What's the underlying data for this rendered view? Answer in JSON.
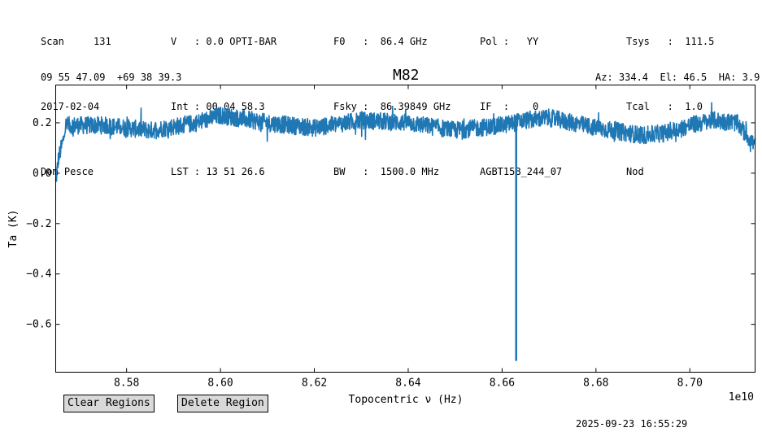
{
  "header": {
    "col1": [
      "Scan     131",
      "2017-02-04",
      "Dom Pesce"
    ],
    "col2": [
      "V   : 0.0 OPTI-BAR",
      "Int : 00 04 58.3",
      "LST : 13 51 26.6"
    ],
    "col3": [
      "F0   :  86.4 GHz",
      "Fsky :  86.39849 GHz",
      "BW   :  1500.0 MHz"
    ],
    "col4": [
      "Pol :   YY",
      "IF  :    0",
      "AGBT15B_244_07"
    ],
    "col5": [
      "Tsys   :  111.5",
      "Tcal   :  1.0",
      "Nod"
    ],
    "radec": "09 55 47.09  +69 38 39.3",
    "azel": "Az: 334.4  El: 46.5  HA: 3.9"
  },
  "buttons": {
    "clear": "Clear Regions",
    "delete": "Delete Region"
  },
  "timestamp": "2025-09-23 16:55:29",
  "colors": {
    "line": "#1f77b4",
    "button_bg": "#d9d9d9"
  },
  "chart_data": {
    "type": "line",
    "title": "M82",
    "xlabel": "Topocentric ν (Hz)",
    "ylabel": "Ta (K)",
    "x_offset_label": "1e10",
    "xlim": [
      8.5649,
      8.7139
    ],
    "ylim": [
      -0.79,
      0.35
    ],
    "xticks": [
      8.58,
      8.6,
      8.62,
      8.64,
      8.66,
      8.68,
      8.7
    ],
    "xtick_labels": [
      "8.58",
      "8.60",
      "8.62",
      "8.64",
      "8.66",
      "8.68",
      "8.70"
    ],
    "yticks": [
      0.2,
      0.0,
      -0.2,
      -0.4,
      -0.6
    ],
    "ytick_labels": [
      "0.2",
      "0.0",
      "−0.2",
      "−0.4",
      "−0.6"
    ],
    "grid": false,
    "series": [
      {
        "baseline_x": [
          8.5649,
          8.5655,
          8.5665,
          8.567,
          8.575,
          8.585,
          8.595,
          8.6,
          8.61,
          8.62,
          8.63,
          8.64,
          8.65,
          8.66,
          8.665,
          8.67,
          8.68,
          8.69,
          8.695,
          8.7,
          8.705,
          8.71,
          8.7139
        ],
        "baseline_y": [
          -0.04,
          0.06,
          0.13,
          0.19,
          0.19,
          0.17,
          0.2,
          0.23,
          0.2,
          0.18,
          0.21,
          0.2,
          0.17,
          0.19,
          0.21,
          0.22,
          0.18,
          0.15,
          0.16,
          0.19,
          0.21,
          0.2,
          0.11
        ],
        "noise_amplitude": 0.035,
        "spike": {
          "x": 8.663,
          "min": -0.745
        }
      }
    ]
  }
}
